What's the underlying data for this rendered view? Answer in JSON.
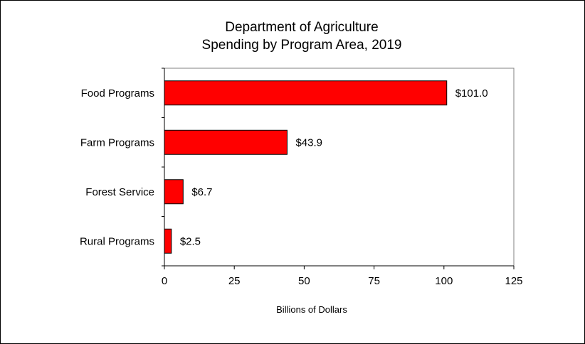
{
  "chart_data": {
    "type": "bar",
    "orientation": "horizontal",
    "title": "Department of Agriculture",
    "subtitle": "Spending by Program Area, 2019",
    "categories": [
      "Food Programs",
      "Farm Programs",
      "Forest Service",
      "Rural Programs"
    ],
    "values": [
      101.0,
      43.9,
      6.7,
      2.5
    ],
    "data_labels": [
      "$101.0",
      "$43.9",
      "$6.7",
      "$2.5"
    ],
    "xlabel": "Billions of Dollars",
    "ylabel": "",
    "xlim": [
      0,
      125
    ],
    "xticks": [
      0,
      25,
      50,
      75,
      100,
      125
    ],
    "grid": false,
    "legend": "none",
    "colors": {
      "bar": "#ff0000",
      "bar_edge": "#000000",
      "plot_border": "#808080"
    }
  }
}
